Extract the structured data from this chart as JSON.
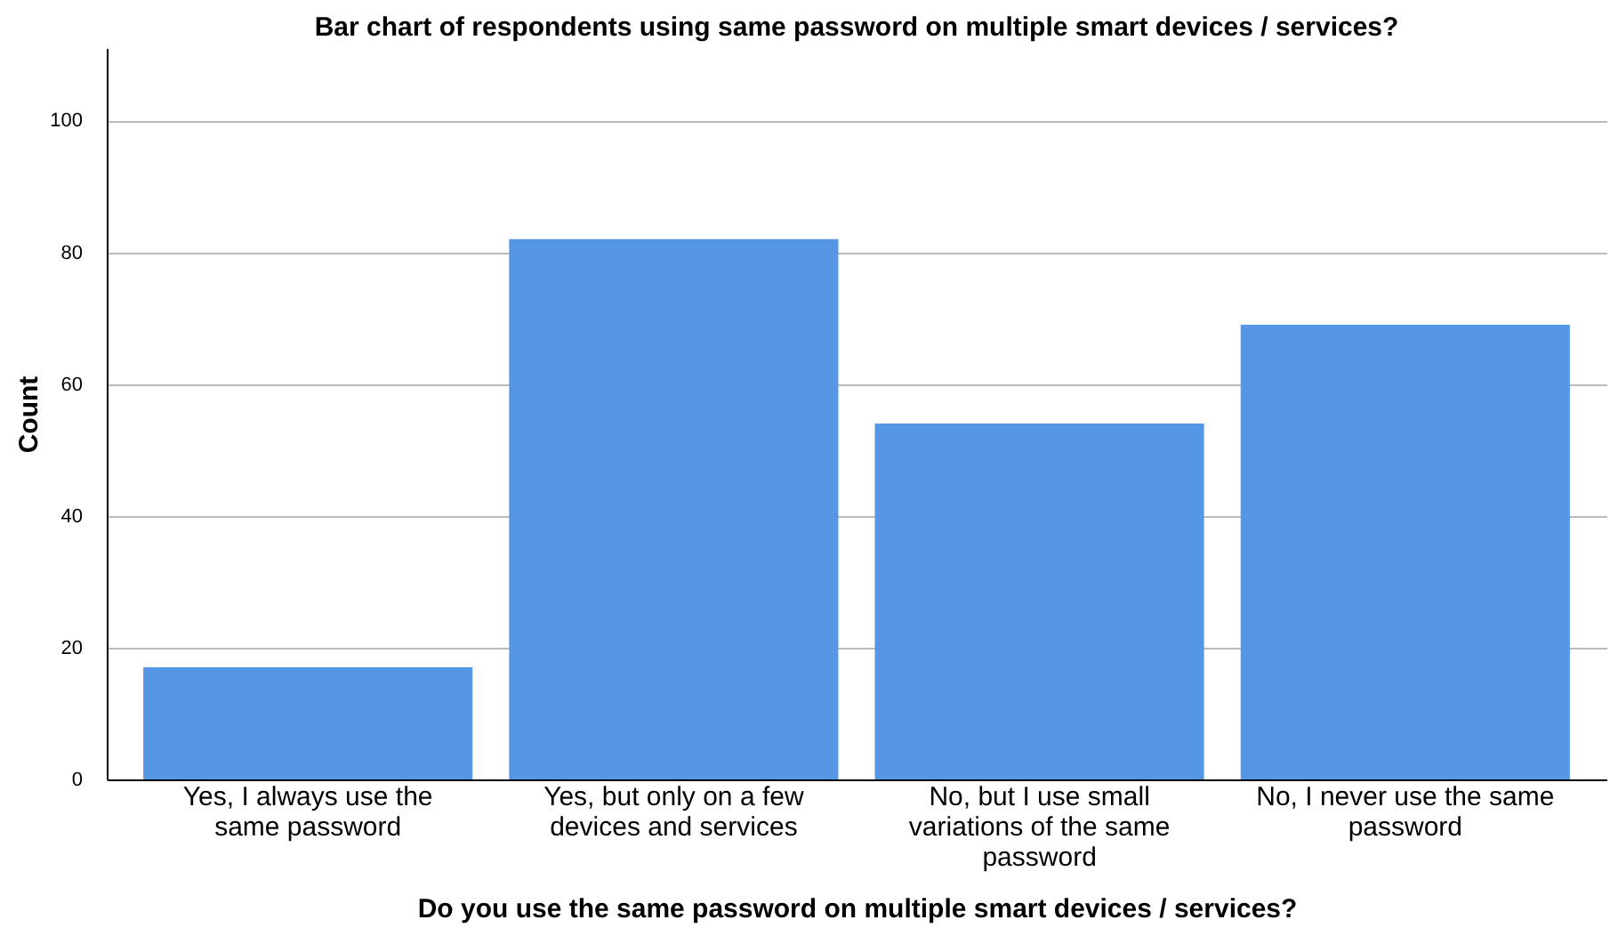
{
  "chart_data": {
    "type": "bar",
    "title": "Bar chart of respondents using same password on multiple smart devices / services?",
    "xlabel": "Do you use the same password on multiple smart devices / services?",
    "ylabel": "Count",
    "categories": [
      "Yes, I always use the same password",
      "Yes, but only on a few devices and services",
      "No, but I use small variations of the same password",
      "No, I never use the same password"
    ],
    "values": [
      17,
      82,
      54,
      69
    ],
    "color": "#5596e5",
    "ylim": [
      0,
      111
    ],
    "yticks": [
      0,
      20,
      40,
      60,
      80,
      100
    ],
    "grid": "y"
  }
}
